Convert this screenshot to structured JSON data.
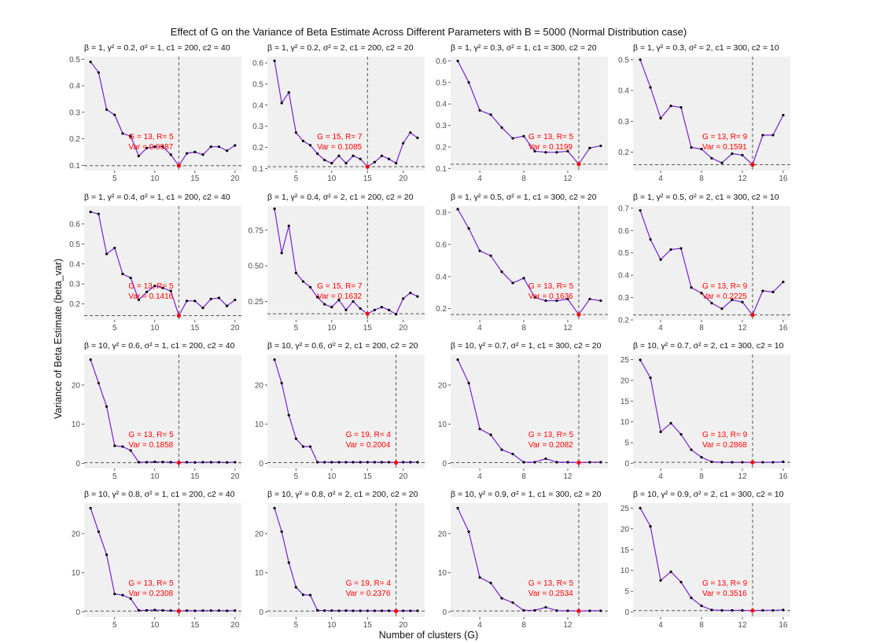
{
  "figure": {
    "title": "Effect of G on the Variance of Beta Estimate Across Different Parameters with B = 5000 (Normal Distribution case)",
    "xlabel": "Number of clusters (G)",
    "ylabel": "Variance of Beta Estimate (beta_var)",
    "colors": {
      "line": "#7b1fd6",
      "point": "#000000",
      "highlight": "#ff0000",
      "panel_bg": "#f0f0f0",
      "refline": "#555555",
      "annotation": "#ff0000"
    }
  },
  "chart_data": [
    {
      "type": "line",
      "strip": "β = 1, γ² = 0.2, σ² = 1, c1 = 200, c2 = 40",
      "x": [
        2,
        3,
        4,
        5,
        6,
        7,
        8,
        9,
        10,
        11,
        12,
        13,
        14,
        15,
        16,
        17,
        18,
        19,
        20
      ],
      "y": [
        0.49,
        0.45,
        0.31,
        0.29,
        0.22,
        0.21,
        0.135,
        0.165,
        0.17,
        0.17,
        0.14,
        0.0987,
        0.145,
        0.15,
        0.14,
        0.17,
        0.17,
        0.155,
        0.175
      ],
      "xlim": [
        1.2,
        20.8
      ],
      "ylim": [
        0.08,
        0.51
      ],
      "xticks": [
        5,
        10,
        15,
        20
      ],
      "yticks": [
        0.1,
        0.2,
        0.3,
        0.4,
        0.5
      ],
      "yfmt": 1,
      "opt_G": 13,
      "min_var": 0.0987,
      "annotation": [
        "G = 13, R= 5",
        "Var = 0.0987"
      ]
    },
    {
      "type": "line",
      "strip": "β = 1, γ² = 0.2, σ² = 2, c1 = 200, c2 = 20",
      "x": [
        2,
        3,
        4,
        5,
        6,
        7,
        8,
        9,
        10,
        11,
        12,
        13,
        14,
        15,
        16,
        17,
        18,
        19,
        20,
        21,
        22
      ],
      "y": [
        0.61,
        0.41,
        0.46,
        0.27,
        0.23,
        0.21,
        0.17,
        0.14,
        0.125,
        0.16,
        0.125,
        0.16,
        0.145,
        0.1085,
        0.13,
        0.16,
        0.145,
        0.125,
        0.22,
        0.27,
        0.245
      ],
      "xlim": [
        1.0,
        23.0
      ],
      "ylim": [
        0.09,
        0.63
      ],
      "xticks": [
        5,
        10,
        15,
        20
      ],
      "yticks": [
        0.1,
        0.2,
        0.3,
        0.4,
        0.5,
        0.6
      ],
      "yfmt": 1,
      "opt_G": 15,
      "min_var": 0.1085,
      "annotation": [
        "G = 15, R= 7",
        "Var = 0.1085"
      ]
    },
    {
      "type": "line",
      "strip": "β = 1, γ² = 0.3, σ² = 1, c1 = 300, c2 = 20",
      "x": [
        2,
        3,
        4,
        5,
        6,
        7,
        8,
        9,
        10,
        11,
        12,
        13,
        14,
        15
      ],
      "y": [
        0.6,
        0.5,
        0.37,
        0.35,
        0.29,
        0.24,
        0.25,
        0.18,
        0.175,
        0.175,
        0.18,
        0.1199,
        0.195,
        0.205
      ],
      "xlim": [
        1.35,
        15.65
      ],
      "ylim": [
        0.09,
        0.62
      ],
      "xticks": [
        4,
        8,
        12
      ],
      "yticks": [
        0.1,
        0.2,
        0.3,
        0.4,
        0.5,
        0.6
      ],
      "yfmt": 1,
      "opt_G": 13,
      "min_var": 0.1199,
      "annotation": [
        "G = 13, R= 5",
        "Var = 0.1199"
      ]
    },
    {
      "type": "line",
      "strip": "β = 1, γ² = 0.3, σ² = 2, c1 = 300, c2 = 10",
      "x": [
        2,
        3,
        4,
        5,
        6,
        7,
        8,
        9,
        10,
        11,
        12,
        13,
        14,
        15,
        16
      ],
      "y": [
        0.5,
        0.41,
        0.31,
        0.35,
        0.345,
        0.215,
        0.21,
        0.18,
        0.165,
        0.195,
        0.19,
        0.1591,
        0.255,
        0.255,
        0.32
      ],
      "xlim": [
        1.3,
        16.7
      ],
      "ylim": [
        0.14,
        0.51
      ],
      "xticks": [
        4,
        8,
        12,
        16
      ],
      "yticks": [
        0.2,
        0.3,
        0.4,
        0.5
      ],
      "yfmt": 1,
      "opt_G": 13,
      "min_var": 0.1591,
      "annotation": [
        "G = 13, R= 9",
        "Var = 0.1591"
      ]
    },
    {
      "type": "line",
      "strip": "β = 1, γ² = 0.4, σ² = 1, c1 = 200, c2 = 40",
      "x": [
        2,
        3,
        4,
        5,
        6,
        7,
        8,
        9,
        10,
        11,
        12,
        13,
        14,
        15,
        16,
        17,
        18,
        19,
        20
      ],
      "y": [
        0.66,
        0.65,
        0.45,
        0.48,
        0.35,
        0.33,
        0.22,
        0.26,
        0.29,
        0.28,
        0.265,
        0.1416,
        0.215,
        0.215,
        0.18,
        0.225,
        0.23,
        0.19,
        0.22
      ],
      "xlim": [
        1.2,
        20.8
      ],
      "ylim": [
        0.12,
        0.69
      ],
      "xticks": [
        5,
        10,
        15,
        20
      ],
      "yticks": [
        0.2,
        0.3,
        0.4,
        0.5,
        0.6
      ],
      "yfmt": 1,
      "opt_G": 13,
      "min_var": 0.1416,
      "annotation": [
        "G = 13, R= 5",
        "Var = 0.1416"
      ]
    },
    {
      "type": "line",
      "strip": "β = 1, γ² = 0.4, σ² = 2, c1 = 200, c2 = 20",
      "x": [
        2,
        3,
        4,
        5,
        6,
        7,
        8,
        9,
        10,
        11,
        12,
        13,
        14,
        15,
        16,
        17,
        18,
        19,
        20,
        21,
        22
      ],
      "y": [
        0.9,
        0.59,
        0.78,
        0.45,
        0.39,
        0.35,
        0.28,
        0.23,
        0.21,
        0.26,
        0.19,
        0.25,
        0.2,
        0.1632,
        0.19,
        0.21,
        0.19,
        0.16,
        0.27,
        0.31,
        0.285
      ],
      "xlim": [
        1.0,
        23.0
      ],
      "ylim": [
        0.12,
        0.92
      ],
      "xticks": [
        5,
        10,
        15,
        20
      ],
      "yticks": [
        0.25,
        0.5,
        0.75
      ],
      "yfmt": 2,
      "opt_G": 15,
      "min_var": 0.1632,
      "annotation": [
        "G = 15, R= 7",
        "Var = 0.1632"
      ]
    },
    {
      "type": "line",
      "strip": "β = 1, γ² = 0.5, σ² = 1, c1 = 300, c2 = 20",
      "x": [
        2,
        3,
        4,
        5,
        6,
        7,
        8,
        9,
        10,
        11,
        12,
        13,
        14,
        15
      ],
      "y": [
        0.82,
        0.7,
        0.56,
        0.53,
        0.43,
        0.36,
        0.39,
        0.27,
        0.25,
        0.25,
        0.26,
        0.1636,
        0.26,
        0.25
      ],
      "xlim": [
        1.35,
        15.65
      ],
      "ylim": [
        0.13,
        0.84
      ],
      "xticks": [
        4,
        8,
        12
      ],
      "yticks": [
        0.2,
        0.4,
        0.6,
        0.8
      ],
      "yfmt": 1,
      "opt_G": 13,
      "min_var": 0.1636,
      "annotation": [
        "G = 13, R= 5",
        "Var = 0.1636"
      ]
    },
    {
      "type": "line",
      "strip": "β = 1, γ² = 0.5, σ² = 2, c1 = 300, c2 = 10",
      "x": [
        2,
        3,
        4,
        5,
        6,
        7,
        8,
        9,
        10,
        11,
        12,
        13,
        14,
        15,
        16
      ],
      "y": [
        0.69,
        0.56,
        0.47,
        0.515,
        0.52,
        0.345,
        0.32,
        0.275,
        0.25,
        0.29,
        0.28,
        0.2225,
        0.33,
        0.325,
        0.37
      ],
      "xlim": [
        1.3,
        16.7
      ],
      "ylim": [
        0.2,
        0.71
      ],
      "xticks": [
        4,
        8,
        12,
        16
      ],
      "yticks": [
        0.2,
        0.3,
        0.4,
        0.5,
        0.6,
        0.7
      ],
      "yfmt": 1,
      "opt_G": 13,
      "min_var": 0.2225,
      "annotation": [
        "G = 13, R= 9",
        "Var = 0.2225"
      ]
    },
    {
      "type": "line",
      "strip": "β = 10, γ² = 0.6, σ² = 1, c1 = 200, c2 = 40",
      "x": [
        2,
        3,
        4,
        5,
        6,
        7,
        8,
        9,
        10,
        11,
        12,
        13,
        14,
        15,
        16,
        17,
        18,
        19,
        20
      ],
      "y": [
        26.5,
        20.5,
        14.5,
        4.5,
        4.3,
        3.3,
        0.3,
        0.3,
        0.4,
        0.35,
        0.3,
        0.1858,
        0.3,
        0.25,
        0.3,
        0.3,
        0.3,
        0.25,
        0.3
      ],
      "xlim": [
        1.2,
        20.8
      ],
      "ylim": [
        -1.3,
        27.8
      ],
      "xticks": [
        5,
        10,
        15,
        20
      ],
      "yticks": [
        0,
        10,
        20
      ],
      "yfmt": 0,
      "opt_G": 13,
      "min_var": 0.1858,
      "annotation": [
        "G = 13, R= 5",
        "Var = 0.1858"
      ]
    },
    {
      "type": "line",
      "strip": "β = 10, γ² = 0.6, σ² = 2, c1 = 200, c2 = 20",
      "x": [
        2,
        3,
        4,
        5,
        6,
        7,
        8,
        9,
        10,
        11,
        12,
        13,
        14,
        15,
        16,
        17,
        18,
        19,
        20,
        21,
        22
      ],
      "y": [
        26.5,
        20.5,
        12.3,
        6.3,
        4.3,
        4.3,
        0.3,
        0.3,
        0.3,
        0.3,
        0.3,
        0.3,
        0.3,
        0.3,
        0.3,
        0.3,
        0.3,
        0.2004,
        0.3,
        0.3,
        0.3
      ],
      "xlim": [
        1.0,
        23.0
      ],
      "ylim": [
        -1.3,
        27.8
      ],
      "xticks": [
        5,
        10,
        15,
        20
      ],
      "yticks": [
        0,
        10,
        20
      ],
      "yfmt": 0,
      "opt_G": 19,
      "min_var": 0.2004,
      "annotation": [
        "G = 19, R= 4",
        "Var = 0.2004"
      ]
    },
    {
      "type": "line",
      "strip": "β = 10, γ² = 0.7, σ² = 1, c1 = 300, c2 = 20",
      "x": [
        2,
        3,
        4,
        5,
        6,
        7,
        8,
        9,
        10,
        11,
        12,
        13,
        14,
        15
      ],
      "y": [
        26.5,
        20.5,
        8.8,
        7.3,
        3.5,
        2.4,
        0.3,
        0.3,
        1.2,
        0.3,
        0.3,
        0.2082,
        0.3,
        0.3
      ],
      "xlim": [
        1.35,
        15.65
      ],
      "ylim": [
        -1.3,
        27.8
      ],
      "xticks": [
        4,
        8,
        12
      ],
      "yticks": [
        0,
        10,
        20
      ],
      "yfmt": 0,
      "opt_G": 13,
      "min_var": 0.2082,
      "annotation": [
        "G = 13, R= 5",
        "Var = 0.2082"
      ]
    },
    {
      "type": "line",
      "strip": "β = 10, γ² = 0.7, σ² = 2, c1 = 300, c2 = 10",
      "x": [
        2,
        3,
        4,
        5,
        6,
        7,
        8,
        9,
        10,
        11,
        12,
        13,
        14,
        15,
        16
      ],
      "y": [
        24.9,
        20.6,
        7.6,
        9.7,
        7.0,
        3.3,
        1.5,
        0.4,
        0.3,
        0.3,
        0.3,
        0.2868,
        0.3,
        0.3,
        0.4
      ],
      "xlim": [
        1.3,
        16.7
      ],
      "ylim": [
        -1.2,
        26.2
      ],
      "xticks": [
        4,
        8,
        12,
        16
      ],
      "yticks": [
        0,
        5,
        10,
        15,
        20,
        25
      ],
      "yfmt": 0,
      "opt_G": 13,
      "min_var": 0.2868,
      "annotation": [
        "G = 13, R= 9",
        "Var = 0.2868"
      ]
    },
    {
      "type": "line",
      "strip": "β = 10, γ² = 0.8, σ² = 1, c1 = 200, c2 = 40",
      "x": [
        2,
        3,
        4,
        5,
        6,
        7,
        8,
        9,
        10,
        11,
        12,
        13,
        14,
        15,
        16,
        17,
        18,
        19,
        20
      ],
      "y": [
        26.5,
        20.5,
        14.6,
        4.6,
        4.3,
        3.4,
        0.4,
        0.4,
        0.5,
        0.4,
        0.35,
        0.2308,
        0.35,
        0.3,
        0.35,
        0.35,
        0.35,
        0.3,
        0.35
      ],
      "xlim": [
        1.2,
        20.8
      ],
      "ylim": [
        -1.3,
        27.8
      ],
      "xticks": [
        5,
        10,
        15,
        20
      ],
      "yticks": [
        0,
        10,
        20
      ],
      "yfmt": 0,
      "opt_G": 13,
      "min_var": 0.2308,
      "annotation": [
        "G = 13, R= 5",
        "Var = 0.2308"
      ]
    },
    {
      "type": "line",
      "strip": "β = 10, γ² = 0.8, σ² = 2, c1 = 200, c2 = 20",
      "x": [
        2,
        3,
        4,
        5,
        6,
        7,
        8,
        9,
        10,
        11,
        12,
        13,
        14,
        15,
        16,
        17,
        18,
        19,
        20,
        21,
        22
      ],
      "y": [
        26.5,
        20.5,
        12.6,
        6.3,
        4.4,
        4.3,
        0.4,
        0.35,
        0.35,
        0.3,
        0.35,
        0.3,
        0.3,
        0.3,
        0.3,
        0.3,
        0.3,
        0.2376,
        0.3,
        0.3,
        0.3
      ],
      "xlim": [
        1.0,
        23.0
      ],
      "ylim": [
        -1.3,
        27.8
      ],
      "xticks": [
        5,
        10,
        15,
        20
      ],
      "yticks": [
        0,
        10,
        20
      ],
      "yfmt": 0,
      "opt_G": 19,
      "min_var": 0.2376,
      "annotation": [
        "G = 19, R= 4",
        "Var = 0.2376"
      ]
    },
    {
      "type": "line",
      "strip": "β = 10, γ² = 0.9, σ² = 1, c1 = 300, c2 = 20",
      "x": [
        2,
        3,
        4,
        5,
        6,
        7,
        8,
        9,
        10,
        11,
        12,
        13,
        14,
        15
      ],
      "y": [
        26.5,
        20.5,
        8.8,
        7.4,
        3.5,
        2.4,
        0.4,
        0.4,
        1.2,
        0.35,
        0.3,
        0.2534,
        0.3,
        0.3
      ],
      "xlim": [
        1.35,
        15.65
      ],
      "ylim": [
        -1.3,
        27.8
      ],
      "xticks": [
        4,
        8,
        12
      ],
      "yticks": [
        0,
        10,
        20
      ],
      "yfmt": 0,
      "opt_G": 13,
      "min_var": 0.2534,
      "annotation": [
        "G = 13, R= 5",
        "Var = 0.2534"
      ]
    },
    {
      "type": "line",
      "strip": "β = 10, γ² = 0.9, σ² = 2, c1 = 300, c2 = 10",
      "x": [
        2,
        3,
        4,
        5,
        6,
        7,
        8,
        9,
        10,
        11,
        12,
        13,
        14,
        15,
        16
      ],
      "y": [
        25.0,
        20.6,
        7.6,
        9.7,
        7.2,
        3.4,
        1.5,
        0.5,
        0.4,
        0.4,
        0.4,
        0.3516,
        0.4,
        0.4,
        0.5
      ],
      "xlim": [
        1.3,
        16.7
      ],
      "ylim": [
        -1.2,
        26.2
      ],
      "xticks": [
        4,
        8,
        12,
        16
      ],
      "yticks": [
        0,
        5,
        10,
        15,
        20,
        25
      ],
      "yfmt": 0,
      "opt_G": 13,
      "min_var": 0.3516,
      "annotation": [
        "G = 13, R= 9",
        "Var = 0.3516"
      ]
    }
  ]
}
